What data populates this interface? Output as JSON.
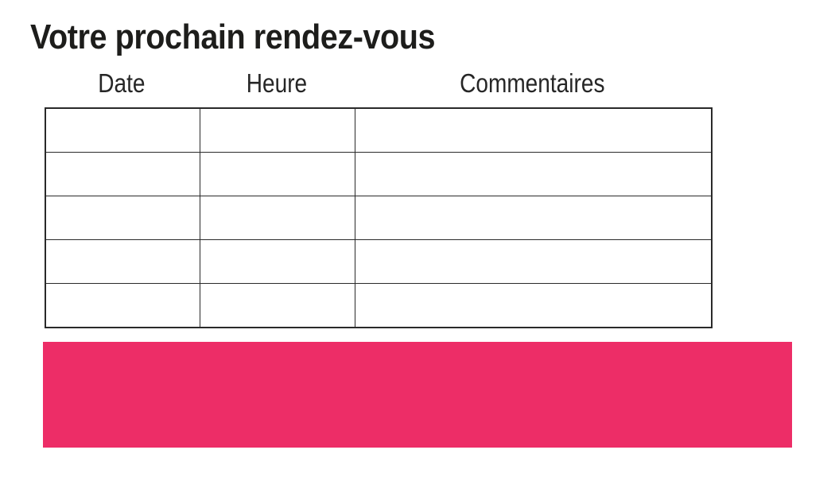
{
  "title": "Votre prochain rendez-vous",
  "table": {
    "headers": [
      "Date",
      "Heure",
      "Commentaires"
    ],
    "rows": [
      [
        "",
        "",
        ""
      ],
      [
        "",
        "",
        ""
      ],
      [
        "",
        "",
        ""
      ],
      [
        "",
        "",
        ""
      ],
      [
        "",
        "",
        ""
      ]
    ]
  },
  "colors": {
    "accent_pink": "#ED2D67",
    "table_border": "#2a2a2a",
    "text": "#1d1d1b"
  }
}
